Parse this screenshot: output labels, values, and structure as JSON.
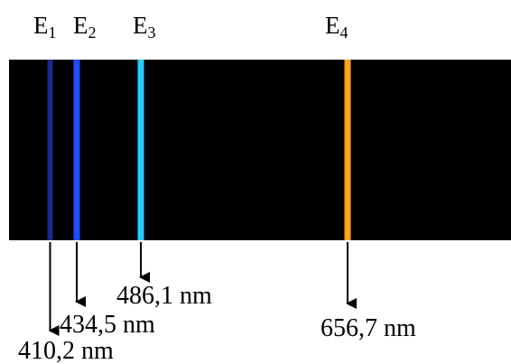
{
  "spectrum": {
    "background_color": "#000000",
    "lines": [
      {
        "energy_label": "E",
        "energy_index": "1",
        "color": "#1a2a8a",
        "wavelength_label": "410,2 nm"
      },
      {
        "energy_label": "E",
        "energy_index": "2",
        "color": "#1f4fff",
        "wavelength_label": "434,5 nm"
      },
      {
        "energy_label": "E",
        "energy_index": "3",
        "color": "#29c9ff",
        "wavelength_label": "486,1 nm"
      },
      {
        "energy_label": "E",
        "energy_index": "4",
        "color": "#ffa31a",
        "wavelength_label": "656,7 nm"
      }
    ]
  }
}
